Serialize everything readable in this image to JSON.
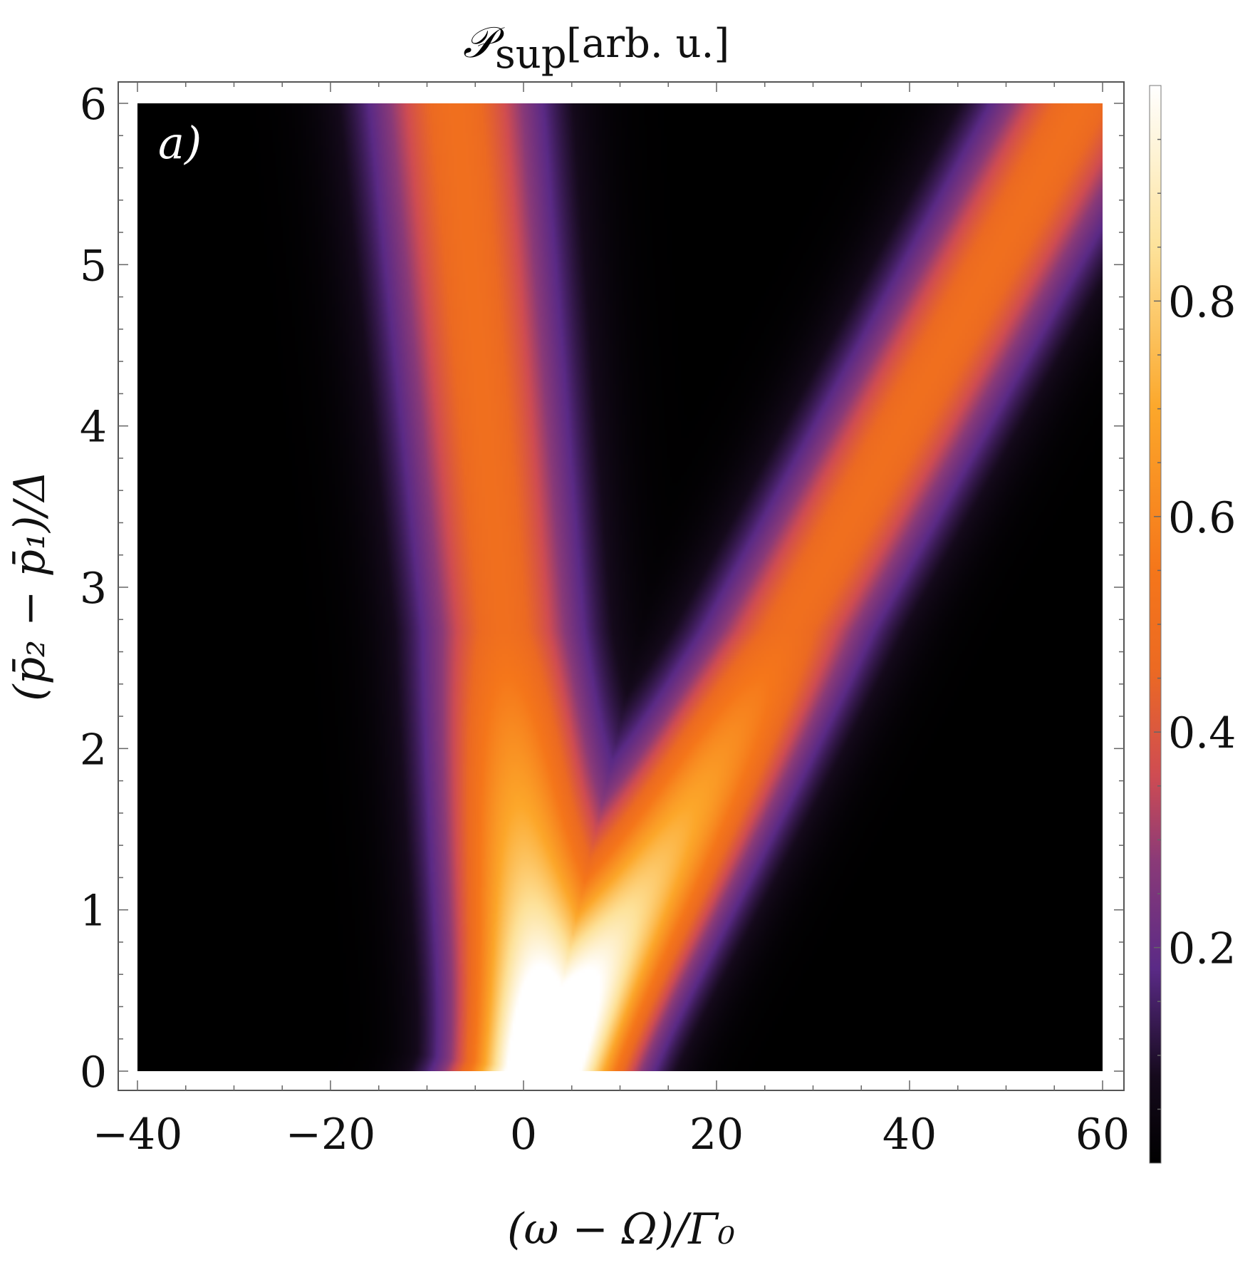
{
  "chart_data": {
    "type": "heatmap",
    "title": "𝒫sup [arb. u.]",
    "title_parts": {
      "symbol": "𝒫",
      "subscript": "sup",
      "unit": "[arb. u.]"
    },
    "panel_label": "a)",
    "xlabel": "(ω − Ω)/Γ₀",
    "ylabel": "(p̄₂ − p̄₁)/Δ",
    "xlim": [
      -40,
      60
    ],
    "ylim": [
      0,
      6
    ],
    "x_ticks": [
      -40,
      -20,
      0,
      20,
      40,
      60
    ],
    "x_tick_labels": [
      "−40",
      "−20",
      "0",
      "20",
      "40",
      "60"
    ],
    "y_ticks": [
      0,
      1,
      2,
      3,
      4,
      5,
      6
    ],
    "y_tick_labels": [
      "0",
      "1",
      "2",
      "3",
      "4",
      "5",
      "6"
    ],
    "colorbar": {
      "range": [
        0,
        1
      ],
      "ticks": [
        0.2,
        0.4,
        0.6,
        0.8
      ],
      "tick_labels": [
        "0.2",
        "0.4",
        "0.6",
        "0.8"
      ],
      "colormap": "inferno-like",
      "colormap_stops": [
        {
          "value": 0.0,
          "color": "#000000"
        },
        {
          "value": 0.08,
          "color": "#150a1c"
        },
        {
          "value": 0.18,
          "color": "#5a2a86"
        },
        {
          "value": 0.28,
          "color": "#8a3a78"
        },
        {
          "value": 0.36,
          "color": "#cf4c52"
        },
        {
          "value": 0.46,
          "color": "#ec6a22"
        },
        {
          "value": 0.55,
          "color": "#f5761a"
        },
        {
          "value": 0.7,
          "color": "#fca72a"
        },
        {
          "value": 0.85,
          "color": "#fde29a"
        },
        {
          "value": 1.0,
          "color": "#ffffff"
        }
      ]
    },
    "description_model": {
      "branch_left": {
        "center_at_y0": 2,
        "center_slope_per_y": -1.5,
        "width": 5.5,
        "amplitude_at_y0": 1.0,
        "amplitude_at_ymax": 0.5
      },
      "branch_right": {
        "center_at_y0": 2,
        "center_slope_per_y": 9.3,
        "width": 6.0,
        "amplitude_at_y0": 1.0,
        "amplitude_at_ymax": 0.5
      }
    }
  }
}
